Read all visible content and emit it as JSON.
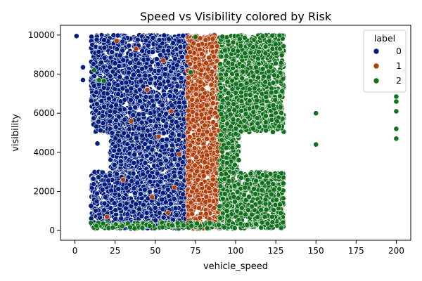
{
  "chart_data": {
    "type": "scatter",
    "title": "Speed vs Visibility colored by Risk",
    "xlabel": "vehicle_speed",
    "ylabel": "visibility",
    "xlim": [
      -9,
      209
    ],
    "ylim": [
      -500,
      10500
    ],
    "xticks": [
      0,
      25,
      50,
      75,
      100,
      125,
      150,
      175,
      200
    ],
    "yticks": [
      0,
      2000,
      4000,
      6000,
      8000,
      10000
    ],
    "grid": false,
    "legend": {
      "title": "label",
      "placement": "top-right",
      "entries": [
        "0",
        "1",
        "2"
      ]
    },
    "series": [
      {
        "name": "0",
        "color": "#001c7f",
        "regions": [
          {
            "x": [
              10,
              72
            ],
            "y": [
              5000,
              10000
            ]
          },
          {
            "x": [
              22,
              72
            ],
            "y": [
              3000,
              5000
            ]
          },
          {
            "x": [
              10,
              72
            ],
            "y": [
              100,
              3000
            ]
          }
        ],
        "points": [
          [
            1,
            9950
          ],
          [
            5,
            8350
          ],
          [
            5,
            7700
          ],
          [
            12,
            7900
          ],
          [
            14,
            4450
          ],
          [
            18,
            7300
          ]
        ]
      },
      {
        "name": "1",
        "color": "#b1400d",
        "regions": [
          {
            "x": [
              70,
              90
            ],
            "y": [
              100,
              10000
            ]
          }
        ],
        "points": [
          [
            26,
            9700
          ],
          [
            38,
            9300
          ],
          [
            45,
            7200
          ],
          [
            55,
            8700
          ],
          [
            60,
            6100
          ],
          [
            65,
            3900
          ],
          [
            30,
            2600
          ],
          [
            48,
            1700
          ],
          [
            58,
            900
          ],
          [
            20,
            700
          ],
          [
            42,
            400
          ],
          [
            62,
            2200
          ],
          [
            35,
            5600
          ],
          [
            52,
            4800
          ]
        ]
      },
      {
        "name": "2",
        "color": "#12711c",
        "regions": [
          {
            "x": [
              90,
              130
            ],
            "y": [
              5000,
              10000
            ]
          },
          {
            "x": [
              90,
              102
            ],
            "y": [
              3000,
              5000
            ]
          },
          {
            "x": [
              90,
              130
            ],
            "y": [
              100,
              3000
            ]
          },
          {
            "x": [
              10,
              90
            ],
            "y": [
              100,
              400
            ]
          }
        ],
        "points": [
          [
            150,
            6000
          ],
          [
            150,
            4400
          ],
          [
            200,
            6850
          ],
          [
            200,
            6600
          ],
          [
            200,
            6100
          ],
          [
            200,
            5200
          ],
          [
            200,
            4700
          ],
          [
            12,
            8200
          ],
          [
            15,
            7700
          ],
          [
            18,
            7650
          ],
          [
            75,
            9900
          ],
          [
            72,
            8100
          ]
        ]
      }
    ]
  }
}
